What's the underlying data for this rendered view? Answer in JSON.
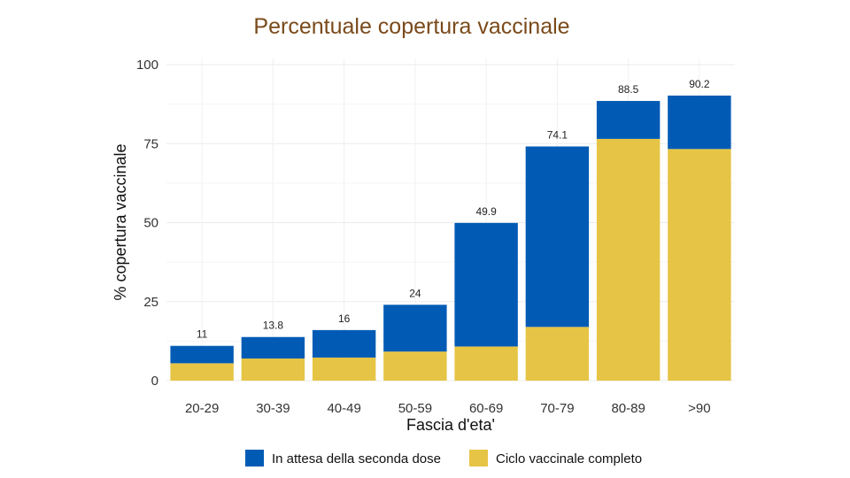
{
  "chart_data": {
    "type": "bar",
    "stacked": true,
    "title": "Percentuale copertura vaccinale",
    "xlabel": "Fascia d'eta'",
    "ylabel": "% copertura vaccinale",
    "ylim": [
      0,
      100
    ],
    "yticks": [
      0,
      25,
      50,
      75,
      100
    ],
    "categories": [
      "20-29",
      "30-39",
      "40-49",
      "50-59",
      "60-69",
      "70-79",
      "80-89",
      ">90"
    ],
    "series": [
      {
        "name": "Ciclo vaccinale completo",
        "color": "#e6c445",
        "values": [
          5.5,
          7.0,
          7.3,
          9.2,
          10.8,
          17.0,
          76.5,
          73.3
        ]
      },
      {
        "name": "In attesa della seconda dose",
        "color": "#015bb5",
        "values": [
          5.5,
          6.8,
          8.7,
          14.8,
          39.1,
          57.1,
          12.0,
          16.9
        ]
      }
    ],
    "totals": [
      "11",
      "13.8",
      "16",
      "24",
      "49.9",
      "74.1",
      "88.5",
      "90.2"
    ],
    "legend_position": "bottom",
    "grid": true
  }
}
